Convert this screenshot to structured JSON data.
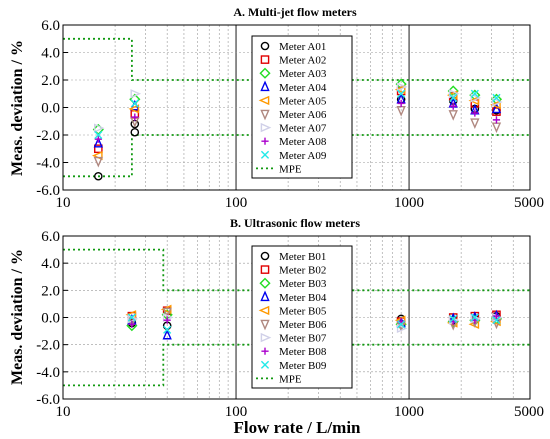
{
  "ylabel": "Meas. deviation / %",
  "xlabel": "Flow rate / L/min",
  "x_ticks": [
    10,
    100,
    1000,
    5000
  ],
  "y_ticks": [
    -6.0,
    -4.0,
    -2.0,
    0.0,
    2.0,
    4.0,
    6.0
  ],
  "colors": {
    "A01": "#000000",
    "A02": "#e00000",
    "A03": "#22dd22",
    "A04": "#0000ee",
    "A05": "#ff9900",
    "A06": "#b08880",
    "A07": "#d0d0e8",
    "A08": "#aa00cc",
    "A09": "#22e8e8",
    "mpe": "#119911"
  },
  "chart_data": [
    {
      "type": "scatter",
      "title": "A. Multi-jet flow meters",
      "xlabel": "",
      "ylabel": "Meas. deviation / %",
      "xscale": "log",
      "xlim": [
        10,
        5000
      ],
      "ylim": [
        -6,
        6
      ],
      "legend_position": "center",
      "legend": [
        "Meter A01",
        "Meter A02",
        "Meter A03",
        "Meter A04",
        "Meter A05",
        "Meter A06",
        "Meter A07",
        "Meter A08",
        "Meter A09",
        "MPE"
      ],
      "series": [
        {
          "name": "Meter A01",
          "marker": "circle",
          "color": "#000000",
          "points": [
            [
              16,
              -5.0
            ],
            [
              26,
              -1.8
            ],
            [
              26,
              -1.2
            ],
            [
              900,
              0.6
            ],
            [
              1800,
              0.5
            ],
            [
              2400,
              -0.1
            ],
            [
              3200,
              -0.2
            ]
          ]
        },
        {
          "name": "Meter A02",
          "marker": "square",
          "color": "#e00000",
          "points": [
            [
              16,
              -3.0
            ],
            [
              26,
              -0.5
            ],
            [
              900,
              1.2
            ],
            [
              1800,
              0.8
            ],
            [
              2400,
              0.3
            ],
            [
              3200,
              -0.3
            ]
          ]
        },
        {
          "name": "Meter A03",
          "marker": "diamond",
          "color": "#22dd22",
          "points": [
            [
              16,
              -1.6
            ],
            [
              26,
              0.6
            ],
            [
              900,
              1.7
            ],
            [
              1800,
              1.2
            ],
            [
              2400,
              0.9
            ],
            [
              3200,
              0.6
            ]
          ]
        },
        {
          "name": "Meter A04",
          "marker": "triangle-up",
          "color": "#0000ee",
          "points": [
            [
              16,
              -2.6
            ],
            [
              26,
              0.1
            ],
            [
              900,
              0.6
            ],
            [
              1800,
              0.3
            ],
            [
              2400,
              -0.2
            ],
            [
              3200,
              -0.1
            ]
          ]
        },
        {
          "name": "Meter A05",
          "marker": "triangle-left",
          "color": "#ff9900",
          "points": [
            [
              16,
              -3.5
            ],
            [
              26,
              -0.1
            ],
            [
              900,
              1.3
            ],
            [
              1800,
              0.9
            ],
            [
              2400,
              0.5
            ],
            [
              3200,
              0.2
            ]
          ]
        },
        {
          "name": "Meter A06",
          "marker": "triangle-down",
          "color": "#b08880",
          "points": [
            [
              16,
              -3.9
            ],
            [
              26,
              -1.0
            ],
            [
              900,
              -0.2
            ],
            [
              1800,
              -0.5
            ],
            [
              2400,
              -1.1
            ],
            [
              3200,
              -1.4
            ]
          ]
        },
        {
          "name": "Meter A07",
          "marker": "triangle-right",
          "color": "#d0d0e8",
          "points": [
            [
              16,
              -1.5
            ],
            [
              26,
              1.0
            ],
            [
              900,
              1.5
            ],
            [
              1800,
              1.0
            ],
            [
              2400,
              0.7
            ],
            [
              3200,
              0.4
            ]
          ]
        },
        {
          "name": "Meter A08",
          "marker": "plus",
          "color": "#aa00cc",
          "points": [
            [
              16,
              -2.3
            ],
            [
              26,
              -0.7
            ],
            [
              900,
              0.3
            ],
            [
              1800,
              0.1
            ],
            [
              2400,
              -0.4
            ],
            [
              3200,
              -0.9
            ]
          ]
        },
        {
          "name": "Meter A09",
          "marker": "cross",
          "color": "#22e8e8",
          "points": [
            [
              16,
              -2.0
            ],
            [
              26,
              0.3
            ],
            [
              900,
              1.0
            ],
            [
              1800,
              0.7
            ],
            [
              2400,
              1.0
            ],
            [
              3200,
              0.7
            ]
          ]
        },
        {
          "name": "MPE",
          "marker": "dotted-line",
          "color": "#119911",
          "upper": [
            [
              10,
              5
            ],
            [
              25,
              5
            ],
            [
              25,
              2
            ],
            [
              5000,
              2
            ]
          ],
          "lower": [
            [
              10,
              -5
            ],
            [
              25,
              -5
            ],
            [
              25,
              -2
            ],
            [
              5000,
              -2
            ]
          ]
        }
      ]
    },
    {
      "type": "scatter",
      "title": "B. Ultrasonic flow meters",
      "xlabel": "Flow rate / L/min",
      "ylabel": "Meas. deviation / %",
      "xscale": "log",
      "xlim": [
        10,
        5000
      ],
      "ylim": [
        -6,
        6
      ],
      "legend_position": "center",
      "legend": [
        "Meter B01",
        "Meter B02",
        "Meter B03",
        "Meter B04",
        "Meter B05",
        "Meter B06",
        "Meter B07",
        "Meter B08",
        "Meter B09",
        "MPE"
      ],
      "series": [
        {
          "name": "Meter B01",
          "marker": "circle",
          "color": "#000000",
          "points": [
            [
              25,
              -0.4
            ],
            [
              40,
              -0.6
            ],
            [
              900,
              -0.1
            ],
            [
              1800,
              -0.2
            ],
            [
              2400,
              -0.1
            ],
            [
              3200,
              0.1
            ]
          ]
        },
        {
          "name": "Meter B02",
          "marker": "square",
          "color": "#e00000",
          "points": [
            [
              25,
              0.1
            ],
            [
              40,
              0.5
            ],
            [
              900,
              -0.3
            ],
            [
              1800,
              0.0
            ],
            [
              2400,
              0.1
            ],
            [
              3200,
              0.2
            ]
          ]
        },
        {
          "name": "Meter B03",
          "marker": "diamond",
          "color": "#22dd22",
          "points": [
            [
              25,
              -0.6
            ],
            [
              40,
              0.2
            ],
            [
              900,
              -0.5
            ],
            [
              1800,
              -0.3
            ],
            [
              2400,
              -0.2
            ],
            [
              3200,
              -0.1
            ]
          ]
        },
        {
          "name": "Meter B04",
          "marker": "triangle-up",
          "color": "#0000ee",
          "points": [
            [
              25,
              -0.2
            ],
            [
              40,
              -1.3
            ],
            [
              900,
              -0.4
            ],
            [
              1800,
              -0.1
            ],
            [
              2400,
              0.0
            ],
            [
              3200,
              0.1
            ]
          ]
        },
        {
          "name": "Meter B05",
          "marker": "triangle-left",
          "color": "#ff9900",
          "points": [
            [
              25,
              0.2
            ],
            [
              40,
              0.6
            ],
            [
              900,
              -0.2
            ],
            [
              1800,
              -0.4
            ],
            [
              2400,
              -0.5
            ],
            [
              3200,
              -0.3
            ]
          ]
        },
        {
          "name": "Meter B06",
          "marker": "triangle-down",
          "color": "#b08880",
          "points": [
            [
              25,
              -0.3
            ],
            [
              40,
              0.4
            ],
            [
              900,
              -0.6
            ],
            [
              1800,
              -0.5
            ],
            [
              2400,
              -0.3
            ],
            [
              3200,
              -0.4
            ]
          ]
        },
        {
          "name": "Meter B07",
          "marker": "triangle-right",
          "color": "#d0d0e8",
          "points": [
            [
              25,
              -0.1
            ],
            [
              40,
              0.0
            ],
            [
              900,
              -0.8
            ],
            [
              1800,
              -0.2
            ],
            [
              2400,
              -0.1
            ],
            [
              3200,
              0.0
            ]
          ]
        },
        {
          "name": "Meter B08",
          "marker": "plus",
          "color": "#aa00cc",
          "points": [
            [
              25,
              -0.5
            ],
            [
              40,
              -0.2
            ],
            [
              900,
              -0.3
            ],
            [
              1800,
              -0.3
            ],
            [
              2400,
              -0.2
            ],
            [
              3200,
              0.1
            ]
          ]
        },
        {
          "name": "Meter B09",
          "marker": "cross",
          "color": "#22e8e8",
          "points": [
            [
              25,
              0.0
            ],
            [
              40,
              -0.9
            ],
            [
              900,
              -0.5
            ],
            [
              1800,
              -0.1
            ],
            [
              2400,
              0.0
            ],
            [
              3200,
              -0.2
            ]
          ]
        },
        {
          "name": "MPE",
          "marker": "dotted-line",
          "color": "#119911",
          "upper": [
            [
              10,
              5
            ],
            [
              38,
              5
            ],
            [
              38,
              2
            ],
            [
              5000,
              2
            ]
          ],
          "lower": [
            [
              10,
              -5
            ],
            [
              38,
              -5
            ],
            [
              38,
              -2
            ],
            [
              5000,
              -2
            ]
          ]
        }
      ]
    }
  ]
}
